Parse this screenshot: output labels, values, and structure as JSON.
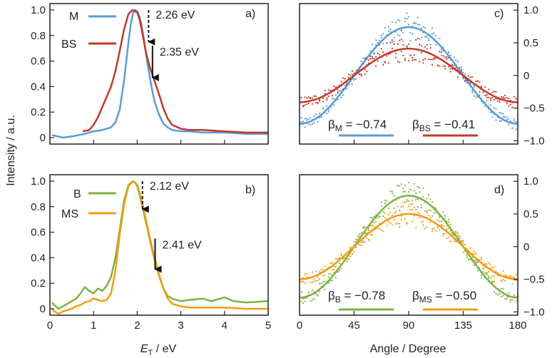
{
  "colors": {
    "M": "#5b9bd5",
    "BS": "#c0392b",
    "B": "#7cb342",
    "MS": "#f39c12",
    "axis": "#222222"
  },
  "axes": {
    "ylabel": "Intensity / a.u.",
    "xlabel_left_italic": "E",
    "xlabel_left_sub": "T",
    "xlabel_left_rest": " / eV",
    "xlabel_right": "Angle / Degree"
  },
  "chart_data": [
    {
      "type": "line",
      "panel": "a)",
      "xlim": [
        0,
        5
      ],
      "ylim": [
        -0.05,
        1.05
      ],
      "yticks": [
        0,
        0.2,
        0.4,
        0.6,
        0.8,
        1.0
      ],
      "ytick_labels": [
        "0",
        "0.2",
        "0.4",
        "0.6",
        "0.8",
        "1.0"
      ],
      "series": [
        {
          "name": "M",
          "color": "M",
          "x": [
            0.05,
            0.3,
            0.5,
            0.8,
            1.0,
            1.2,
            1.4,
            1.5,
            1.6,
            1.7,
            1.75,
            1.8,
            1.85,
            1.9,
            1.95,
            2.0,
            2.05,
            2.1,
            2.15,
            2.2,
            2.25,
            2.3,
            2.35,
            2.4,
            2.5,
            2.6,
            2.7,
            2.8,
            3.0,
            3.2,
            3.5,
            4.0,
            4.5,
            5.0
          ],
          "y": [
            0.02,
            0.0,
            0.01,
            0.03,
            0.05,
            0.06,
            0.08,
            0.12,
            0.22,
            0.45,
            0.6,
            0.75,
            0.88,
            0.97,
            1.0,
            0.99,
            0.95,
            0.88,
            0.78,
            0.66,
            0.55,
            0.45,
            0.36,
            0.28,
            0.18,
            0.11,
            0.08,
            0.06,
            0.05,
            0.05,
            0.04,
            0.04,
            0.03,
            0.03
          ]
        },
        {
          "name": "BS",
          "color": "BS",
          "x": [
            0.75,
            0.9,
            1.0,
            1.1,
            1.2,
            1.3,
            1.4,
            1.5,
            1.6,
            1.7,
            1.8,
            1.9,
            2.0,
            2.05,
            2.1,
            2.15,
            2.2,
            2.25,
            2.3,
            2.4,
            2.5,
            2.6,
            2.7,
            2.8,
            3.0,
            3.2,
            3.5,
            4.0,
            4.5,
            5.0
          ],
          "y": [
            0.05,
            0.06,
            0.1,
            0.16,
            0.24,
            0.32,
            0.4,
            0.52,
            0.68,
            0.85,
            0.97,
            1.0,
            0.98,
            0.93,
            0.85,
            0.76,
            0.67,
            0.6,
            0.54,
            0.44,
            0.34,
            0.23,
            0.15,
            0.1,
            0.07,
            0.06,
            0.06,
            0.05,
            0.04,
            0.04
          ]
        }
      ],
      "arrows": [
        {
          "label": "2.26 eV",
          "x": 2.26,
          "y_top": 1.0,
          "y_tip": 0.75,
          "dashed": true
        },
        {
          "label": "2.35 eV",
          "x": 2.35,
          "y_top": 0.72,
          "y_tip": 0.47,
          "dashed": false
        }
      ]
    },
    {
      "type": "line",
      "panel": "b)",
      "xlim": [
        0,
        5
      ],
      "ylim": [
        -0.05,
        1.05
      ],
      "xticks": [
        0,
        1,
        2,
        3,
        4,
        5
      ],
      "yticks": [
        0,
        0.2,
        0.4,
        0.6,
        0.8,
        1.0
      ],
      "ytick_labels": [
        "0",
        "0.2",
        "0.4",
        "0.6",
        "0.8",
        "1.0"
      ],
      "series": [
        {
          "name": "B",
          "color": "B",
          "x": [
            0.05,
            0.1,
            0.2,
            0.3,
            0.4,
            0.5,
            0.6,
            0.7,
            0.8,
            0.9,
            1.0,
            1.1,
            1.2,
            1.3,
            1.4,
            1.5,
            1.6,
            1.7,
            1.8,
            1.9,
            1.95,
            2.0,
            2.05,
            2.1,
            2.2,
            2.3,
            2.4,
            2.5,
            2.6,
            2.7,
            2.8,
            3.0,
            3.2,
            3.5,
            3.7,
            4.0,
            4.2,
            4.5,
            5.0
          ],
          "y": [
            0.05,
            0.03,
            0.0,
            0.02,
            0.04,
            0.06,
            0.08,
            0.12,
            0.17,
            0.14,
            0.12,
            0.16,
            0.14,
            0.18,
            0.25,
            0.4,
            0.62,
            0.85,
            0.97,
            1.0,
            0.99,
            0.96,
            0.9,
            0.83,
            0.68,
            0.52,
            0.38,
            0.26,
            0.16,
            0.1,
            0.08,
            0.06,
            0.07,
            0.08,
            0.06,
            0.09,
            0.06,
            0.05,
            0.06
          ]
        },
        {
          "name": "MS",
          "color": "MS",
          "x": [
            0.05,
            0.1,
            0.2,
            0.3,
            0.4,
            0.5,
            0.6,
            0.7,
            0.8,
            0.9,
            1.0,
            1.1,
            1.2,
            1.3,
            1.4,
            1.5,
            1.6,
            1.7,
            1.8,
            1.9,
            1.95,
            2.0,
            2.1,
            2.2,
            2.3,
            2.4,
            2.5,
            2.6,
            2.7,
            2.8,
            3.0,
            3.2,
            3.5,
            4.0,
            4.5,
            5.0
          ],
          "y": [
            0.0,
            -0.02,
            -0.04,
            -0.02,
            -0.01,
            0.0,
            0.02,
            0.03,
            0.05,
            0.06,
            0.08,
            0.07,
            0.06,
            0.07,
            0.12,
            0.3,
            0.58,
            0.82,
            0.96,
            1.0,
            0.99,
            0.97,
            0.86,
            0.7,
            0.54,
            0.4,
            0.27,
            0.16,
            0.08,
            0.04,
            0.02,
            0.01,
            0.01,
            0.01,
            0.0,
            0.0
          ]
        }
      ],
      "arrows": [
        {
          "label": "2.12 eV",
          "x": 2.12,
          "y_top": 1.0,
          "y_tip": 0.78,
          "dashed": true
        },
        {
          "label": "2.41 eV",
          "x": 2.41,
          "y_top": 0.55,
          "y_tip": 0.31,
          "dashed": false
        }
      ]
    },
    {
      "type": "scatter",
      "panel": "c)",
      "xlim": [
        0,
        180
      ],
      "ylim": [
        -1.05,
        1.1
      ],
      "yticks": [
        -1.0,
        -0.5,
        0,
        0.5,
        1.0
      ],
      "ytick_labels": [
        "−1.0",
        "−0.5",
        "0",
        "0.5",
        "1.0"
      ],
      "series": [
        {
          "name": "M",
          "color": "M",
          "beta": -0.74,
          "amplitude": 0.74
        },
        {
          "name": "BS",
          "color": "BS",
          "beta": -0.41,
          "amplitude": 0.41
        }
      ],
      "beta_labels": [
        {
          "sub": "M",
          "value": " = −0.74",
          "color": "M"
        },
        {
          "sub": "BS",
          "value": " = −0.41",
          "color": "BS"
        }
      ]
    },
    {
      "type": "scatter",
      "panel": "d)",
      "xlim": [
        0,
        180
      ],
      "ylim": [
        -1.05,
        1.1
      ],
      "xticks": [
        0,
        45,
        90,
        135,
        180
      ],
      "yticks": [
        -1.0,
        -0.5,
        0,
        0.5,
        1.0
      ],
      "ytick_labels": [
        "−1.0",
        "−0.5",
        "0",
        "0.5",
        "1.0"
      ],
      "series": [
        {
          "name": "B",
          "color": "B",
          "beta": -0.78,
          "amplitude": 0.78
        },
        {
          "name": "MS",
          "color": "MS",
          "beta": -0.5,
          "amplitude": 0.5
        }
      ],
      "beta_labels": [
        {
          "sub": "B",
          "value": " = −0.78",
          "color": "B"
        },
        {
          "sub": "MS",
          "value": " = −0.50",
          "color": "MS"
        }
      ]
    }
  ]
}
